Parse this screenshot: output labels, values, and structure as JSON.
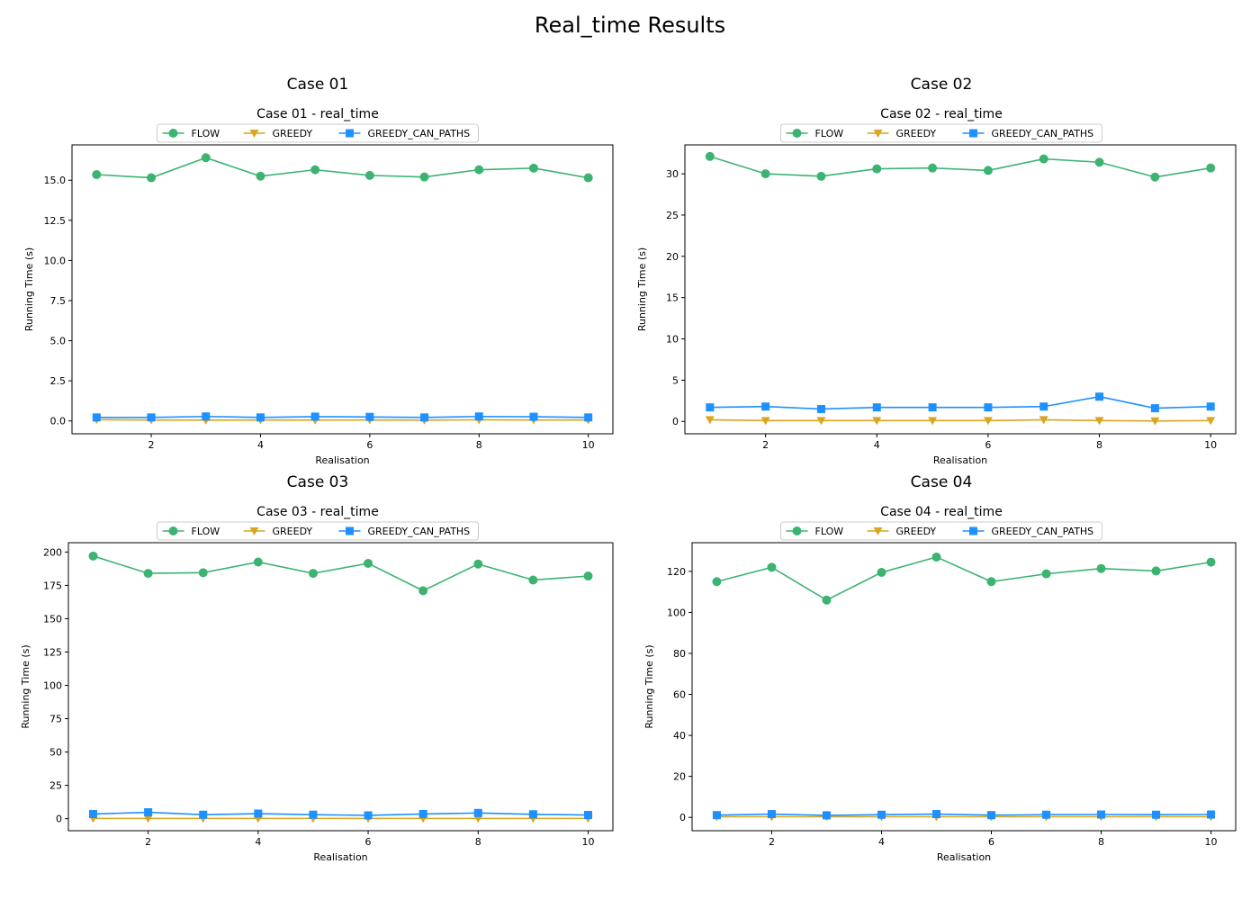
{
  "figure": {
    "title": "Real_time Results"
  },
  "series_style": [
    {
      "name": "FLOW",
      "color": "#3cb371",
      "marker": "circle"
    },
    {
      "name": "GREEDY",
      "color": "#daa520",
      "marker": "triangle-down"
    },
    {
      "name": "GREEDY_CAN_PATHS",
      "color": "#1e90ff",
      "marker": "square"
    }
  ],
  "chart_data": [
    {
      "type": "line",
      "panel_title": "Case 01",
      "title": "Case 01 - real_time",
      "xlabel": "Realisation",
      "ylabel": "Running Time (s)",
      "xlim": [
        0.55,
        10.45
      ],
      "ylim": [
        -0.8,
        17.2
      ],
      "xticks": [
        2,
        4,
        6,
        8,
        10
      ],
      "yticks": [
        0.0,
        2.5,
        5.0,
        7.5,
        10.0,
        12.5,
        15.0
      ],
      "ytick_labels": [
        "0.0",
        "2.5",
        "5.0",
        "7.5",
        "10.0",
        "12.5",
        "15.0"
      ],
      "legend": "top-center",
      "x": [
        1,
        2,
        3,
        4,
        5,
        6,
        7,
        8,
        9,
        10
      ],
      "series": [
        {
          "name": "FLOW",
          "values": [
            15.35,
            15.15,
            16.4,
            15.25,
            15.65,
            15.3,
            15.2,
            15.65,
            15.75,
            15.15
          ]
        },
        {
          "name": "GREEDY",
          "values": [
            0.08,
            0.06,
            0.05,
            0.06,
            0.05,
            0.06,
            0.05,
            0.07,
            0.06,
            0.06
          ]
        },
        {
          "name": "GREEDY_CAN_PATHS",
          "values": [
            0.22,
            0.22,
            0.28,
            0.22,
            0.27,
            0.25,
            0.22,
            0.28,
            0.26,
            0.22
          ]
        }
      ]
    },
    {
      "type": "line",
      "panel_title": "Case 02",
      "title": "Case 02 - real_time",
      "xlabel": "Realisation",
      "ylabel": "Running Time (s)",
      "xlim": [
        0.55,
        10.45
      ],
      "ylim": [
        -1.5,
        33.5
      ],
      "xticks": [
        2,
        4,
        6,
        8,
        10
      ],
      "yticks": [
        0,
        5,
        10,
        15,
        20,
        25,
        30
      ],
      "ytick_labels": [
        "0",
        "5",
        "10",
        "15",
        "20",
        "25",
        "30"
      ],
      "legend": "top-center",
      "x": [
        1,
        2,
        3,
        4,
        5,
        6,
        7,
        8,
        9,
        10
      ],
      "series": [
        {
          "name": "FLOW",
          "values": [
            32.1,
            30.0,
            29.7,
            30.6,
            30.7,
            30.4,
            31.8,
            31.4,
            29.6,
            30.7
          ]
        },
        {
          "name": "GREEDY",
          "values": [
            0.2,
            0.1,
            0.1,
            0.1,
            0.1,
            0.1,
            0.2,
            0.1,
            0.05,
            0.1
          ]
        },
        {
          "name": "GREEDY_CAN_PATHS",
          "values": [
            1.7,
            1.8,
            1.5,
            1.7,
            1.7,
            1.7,
            1.8,
            3.0,
            1.6,
            1.8
          ]
        }
      ]
    },
    {
      "type": "line",
      "panel_title": "Case 03",
      "title": "Case 03 - real_time",
      "xlabel": "Realisation",
      "ylabel": "Running Time (s)",
      "xlim": [
        0.55,
        10.45
      ],
      "ylim": [
        -9,
        207
      ],
      "xticks": [
        2,
        4,
        6,
        8,
        10
      ],
      "yticks": [
        0,
        25,
        50,
        75,
        100,
        125,
        150,
        175,
        200
      ],
      "ytick_labels": [
        "0",
        "25",
        "50",
        "75",
        "100",
        "125",
        "150",
        "175",
        "200"
      ],
      "legend": "top-center",
      "x": [
        1,
        2,
        3,
        4,
        5,
        6,
        7,
        8,
        9,
        10
      ],
      "series": [
        {
          "name": "FLOW",
          "values": [
            197,
            184,
            184.5,
            192.5,
            184,
            191.5,
            171,
            191,
            179,
            182
          ]
        },
        {
          "name": "GREEDY",
          "values": [
            0.2,
            0.2,
            0.2,
            0.2,
            0.2,
            0.2,
            0.2,
            0.2,
            0.2,
            0.2
          ]
        },
        {
          "name": "GREEDY_CAN_PATHS",
          "values": [
            3.5,
            4.8,
            3,
            3.8,
            3,
            2.5,
            3.5,
            4.3,
            3.3,
            2.8
          ]
        }
      ]
    },
    {
      "type": "line",
      "panel_title": "Case 04",
      "title": "Case 04 - real_time",
      "xlabel": "Realisation",
      "ylabel": "Running Time (s)",
      "xlim": [
        0.55,
        10.45
      ],
      "ylim": [
        -6.5,
        134
      ],
      "xticks": [
        2,
        4,
        6,
        8,
        10
      ],
      "yticks": [
        0,
        20,
        40,
        60,
        80,
        100,
        120
      ],
      "ytick_labels": [
        "0",
        "20",
        "40",
        "60",
        "80",
        "100",
        "120"
      ],
      "legend": "top-center",
      "x": [
        1,
        2,
        3,
        4,
        5,
        6,
        7,
        8,
        9,
        10
      ],
      "series": [
        {
          "name": "FLOW",
          "values": [
            115,
            122,
            106,
            119.5,
            127,
            115,
            118.8,
            121.4,
            120.2,
            124.5
          ]
        },
        {
          "name": "GREEDY",
          "values": [
            0.3,
            0.3,
            0.3,
            0.3,
            0.3,
            0.3,
            0.3,
            0.3,
            0.3,
            0.3
          ]
        },
        {
          "name": "GREEDY_CAN_PATHS",
          "values": [
            1.1,
            1.6,
            1.0,
            1.3,
            1.6,
            1.1,
            1.3,
            1.4,
            1.3,
            1.4
          ]
        }
      ]
    }
  ]
}
